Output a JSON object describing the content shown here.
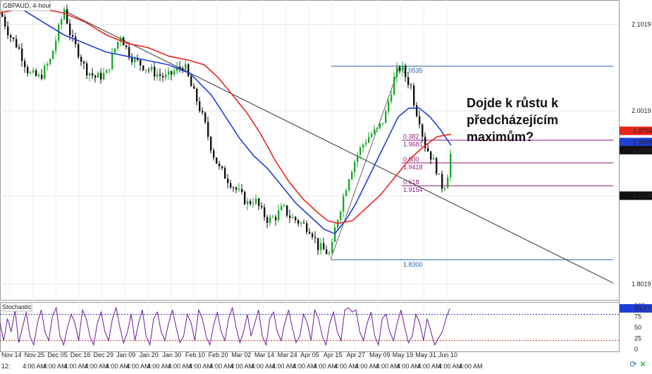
{
  "chart_data": {
    "type": "candlestick",
    "title": "GBPAUD, 4-hour",
    "annotation": "Dojde k růstu k předcházejícím maximům?",
    "y_ticks": [
      2.1019,
      2.0019,
      1.9039,
      1.8019
    ],
    "ylim": [
      1.7835,
      2.13
    ],
    "x_date_labels": [
      "Nov 14",
      "Nov 25",
      "Dec 05",
      "Dec 16",
      "Dec 29",
      "Jan 09",
      "Jan 20",
      "Jan 30",
      "Feb 10",
      "Feb 20",
      "Mar 02",
      "Mar 14",
      "Mar 24",
      "Apr 05",
      "Apr 15",
      "Apr 27",
      "May 09",
      "May 19",
      "May 31",
      "Jun 10"
    ],
    "x_time_label": "4:00 AM",
    "x_time_prefix": "12:",
    "price_labels": {
      "ma_red": 1.9756,
      "ma_blue": 1.9659,
      "last_price": 1.9598,
      "trendline_level": 1.9039
    },
    "fibonacci": {
      "high": 2.0535,
      "low": 1.83,
      "levels": [
        {
          "ratio": "0.382",
          "price": "1.9681"
        },
        {
          "ratio": "0.500",
          "price": "1.9418"
        },
        {
          "ratio": "0.618",
          "price": "1.9154"
        }
      ],
      "high_label": "2.0535",
      "low_label": "1.8300"
    },
    "price_path": [
      [
        0,
        2.115
      ],
      [
        12,
        2.09
      ],
      [
        25,
        2.075
      ],
      [
        40,
        2.045
      ],
      [
        55,
        2.04
      ],
      [
        70,
        2.06
      ],
      [
        80,
        2.09
      ],
      [
        90,
        2.12
      ],
      [
        100,
        2.085
      ],
      [
        110,
        2.07
      ],
      [
        120,
        2.05
      ],
      [
        135,
        2.04
      ],
      [
        150,
        2.045
      ],
      [
        160,
        2.07
      ],
      [
        170,
        2.09
      ],
      [
        180,
        2.07
      ],
      [
        190,
        2.06
      ],
      [
        200,
        2.055
      ],
      [
        210,
        2.05
      ],
      [
        220,
        2.045
      ],
      [
        235,
        2.04
      ],
      [
        250,
        2.05
      ],
      [
        260,
        2.055
      ],
      [
        270,
        2.03
      ],
      [
        280,
        2.01
      ],
      [
        290,
        1.985
      ],
      [
        300,
        1.955
      ],
      [
        310,
        1.935
      ],
      [
        320,
        1.925
      ],
      [
        330,
        1.915
      ],
      [
        340,
        1.905
      ],
      [
        350,
        1.895
      ],
      [
        360,
        1.9
      ],
      [
        370,
        1.885
      ],
      [
        380,
        1.875
      ],
      [
        390,
        1.88
      ],
      [
        400,
        1.89
      ],
      [
        410,
        1.88
      ],
      [
        420,
        1.875
      ],
      [
        430,
        1.87
      ],
      [
        440,
        1.865
      ],
      [
        450,
        1.845
      ],
      [
        460,
        1.84
      ],
      [
        468,
        1.835
      ],
      [
        475,
        1.87
      ],
      [
        485,
        1.9
      ],
      [
        495,
        1.93
      ],
      [
        505,
        1.95
      ],
      [
        515,
        1.965
      ],
      [
        525,
        1.975
      ],
      [
        535,
        1.98
      ],
      [
        545,
        1.995
      ],
      [
        552,
        2.02
      ],
      [
        560,
        2.045
      ],
      [
        568,
        2.053
      ],
      [
        575,
        2.04
      ],
      [
        582,
        2.03
      ],
      [
        588,
        2.005
      ],
      [
        595,
        1.99
      ],
      [
        600,
        1.965
      ],
      [
        607,
        1.955
      ],
      [
        613,
        1.945
      ],
      [
        618,
        1.935
      ],
      [
        623,
        1.92
      ],
      [
        628,
        1.912
      ],
      [
        633,
        1.925
      ],
      [
        637,
        1.945
      ],
      [
        640,
        1.965
      ]
    ],
    "series": [
      {
        "name": "MA fast",
        "color": "#1f3ed6",
        "values": [
          [
            0,
            2.125
          ],
          [
            30,
            2.12
          ],
          [
            60,
            2.105
          ],
          [
            90,
            2.09
          ],
          [
            120,
            2.08
          ],
          [
            150,
            2.07
          ],
          [
            180,
            2.065
          ],
          [
            210,
            2.06
          ],
          [
            240,
            2.055
          ],
          [
            270,
            2.045
          ],
          [
            300,
            2.02
          ],
          [
            320,
            1.995
          ],
          [
            340,
            1.97
          ],
          [
            360,
            1.95
          ],
          [
            380,
            1.935
          ],
          [
            400,
            1.915
          ],
          [
            420,
            1.895
          ],
          [
            440,
            1.88
          ],
          [
            460,
            1.865
          ],
          [
            475,
            1.86
          ],
          [
            490,
            1.875
          ],
          [
            505,
            1.895
          ],
          [
            520,
            1.92
          ],
          [
            535,
            1.945
          ],
          [
            550,
            1.97
          ],
          [
            565,
            1.995
          ],
          [
            580,
            2.005
          ],
          [
            595,
            2.005
          ],
          [
            610,
            1.995
          ],
          [
            625,
            1.98
          ],
          [
            640,
            1.962
          ]
        ]
      },
      {
        "name": "MA slow",
        "color": "#e8241c",
        "values": [
          [
            0,
            2.115
          ],
          [
            30,
            2.12
          ],
          [
            60,
            2.12
          ],
          [
            90,
            2.115
          ],
          [
            120,
            2.105
          ],
          [
            150,
            2.09
          ],
          [
            180,
            2.08
          ],
          [
            210,
            2.075
          ],
          [
            240,
            2.065
          ],
          [
            270,
            2.06
          ],
          [
            290,
            2.055
          ],
          [
            310,
            2.04
          ],
          [
            330,
            2.02
          ],
          [
            350,
            2.0
          ],
          [
            370,
            1.975
          ],
          [
            390,
            1.945
          ],
          [
            410,
            1.92
          ],
          [
            430,
            1.9
          ],
          [
            450,
            1.885
          ],
          [
            465,
            1.875
          ],
          [
            480,
            1.872
          ],
          [
            500,
            1.875
          ],
          [
            520,
            1.89
          ],
          [
            540,
            1.905
          ],
          [
            560,
            1.925
          ],
          [
            580,
            1.945
          ],
          [
            600,
            1.96
          ],
          [
            620,
            1.972
          ],
          [
            640,
            1.975
          ]
        ]
      }
    ],
    "trendlines": [
      {
        "from": [
          90,
          2.118
        ],
        "to": [
          870,
          1.803
        ]
      },
      {
        "from": [
          469,
          1.83
        ],
        "to": [
          567,
          2.0535
        ]
      }
    ],
    "stochastic": {
      "label": "Stochastic",
      "value_label": "93.07",
      "ticks": [
        100,
        75,
        50,
        25,
        0
      ],
      "levels": [
        80,
        20
      ],
      "values": [
        60,
        20,
        70,
        40,
        90,
        15,
        50,
        85,
        30,
        10,
        60,
        90,
        40,
        20,
        75,
        95,
        30,
        10,
        50,
        80,
        60,
        20,
        90,
        70,
        30,
        10,
        60,
        85,
        40,
        20,
        70,
        95,
        50,
        15,
        40,
        80,
        20,
        60,
        90,
        30,
        10,
        70,
        85,
        40,
        20,
        60,
        90,
        50,
        15,
        30,
        80,
        60,
        20,
        90,
        70,
        30,
        10,
        55,
        85,
        40,
        20,
        70,
        95,
        50,
        15,
        40,
        80,
        30,
        60,
        90,
        30,
        10,
        70,
        85,
        40,
        20,
        60,
        90,
        50,
        15,
        30,
        80,
        60,
        20,
        90,
        70,
        30,
        10,
        60,
        85,
        40,
        20,
        90,
        95,
        85,
        90,
        40,
        20,
        60,
        85,
        30,
        10,
        70,
        80,
        40,
        20,
        60,
        90,
        50,
        15,
        30,
        80,
        60,
        20,
        70,
        40,
        10,
        25,
        40,
        70,
        93
      ]
    }
  },
  "ui": {
    "chart_title": "GBPAUD, 4-hour",
    "annotation": "Dojde k růstu k předcházejícím maximům?",
    "colors": {
      "bull": "#1aaa28",
      "bear": "#111111",
      "ma_red": "#e8241c",
      "ma_blue": "#1f3ed6",
      "fib": "#1f5fa8",
      "fib_text": "#8b1a7a",
      "stoch": "#6a1a9a",
      "grid": "#e5e5e5",
      "stoch_upper": "#3030c8",
      "stoch_lower": "#e03030"
    },
    "icons": [
      "sync-icon",
      "close-icon"
    ]
  }
}
